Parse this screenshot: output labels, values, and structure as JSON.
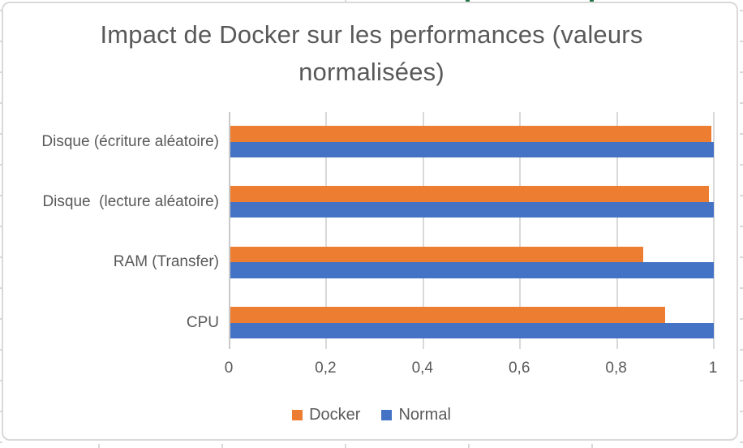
{
  "chart_data": {
    "type": "bar",
    "orientation": "horizontal",
    "title": "Impact de Docker sur les performances (valeurs normalisées)",
    "title_lines": [
      "Impact de Docker sur les performances (valeurs",
      "normalisées)"
    ],
    "categories": [
      "Disque (écriture aléatoire)",
      "Disque  (lecture aléatoire)",
      "RAM (Transfer)",
      "CPU"
    ],
    "category_order": "top-to-bottom",
    "series": [
      {
        "name": "Docker",
        "color": "#ED7D31",
        "values": [
          0.995,
          0.99,
          0.855,
          0.9
        ]
      },
      {
        "name": "Normal",
        "color": "#4472C4",
        "values": [
          1,
          1,
          1,
          1
        ]
      }
    ],
    "xlim": [
      0,
      1
    ],
    "x_ticks": {
      "values": [
        0,
        0.2,
        0.4,
        0.6,
        0.8,
        1
      ],
      "labels": [
        "0",
        "0,2",
        "0,4",
        "0,6",
        "0,8",
        "1"
      ]
    },
    "grid": true,
    "legend_position": "bottom"
  },
  "colors": {
    "docker_orange": "#ED7D31",
    "normal_blue": "#4472C4",
    "gridline": "#D9D9D9",
    "axis_line": "#C9C9C9",
    "text": "#595959",
    "chart_border": "#D9D9D9",
    "spreadsheet_tick": "#D9D9D9",
    "green_cell_mark": "#217346",
    "background": "#FFFFFF"
  }
}
